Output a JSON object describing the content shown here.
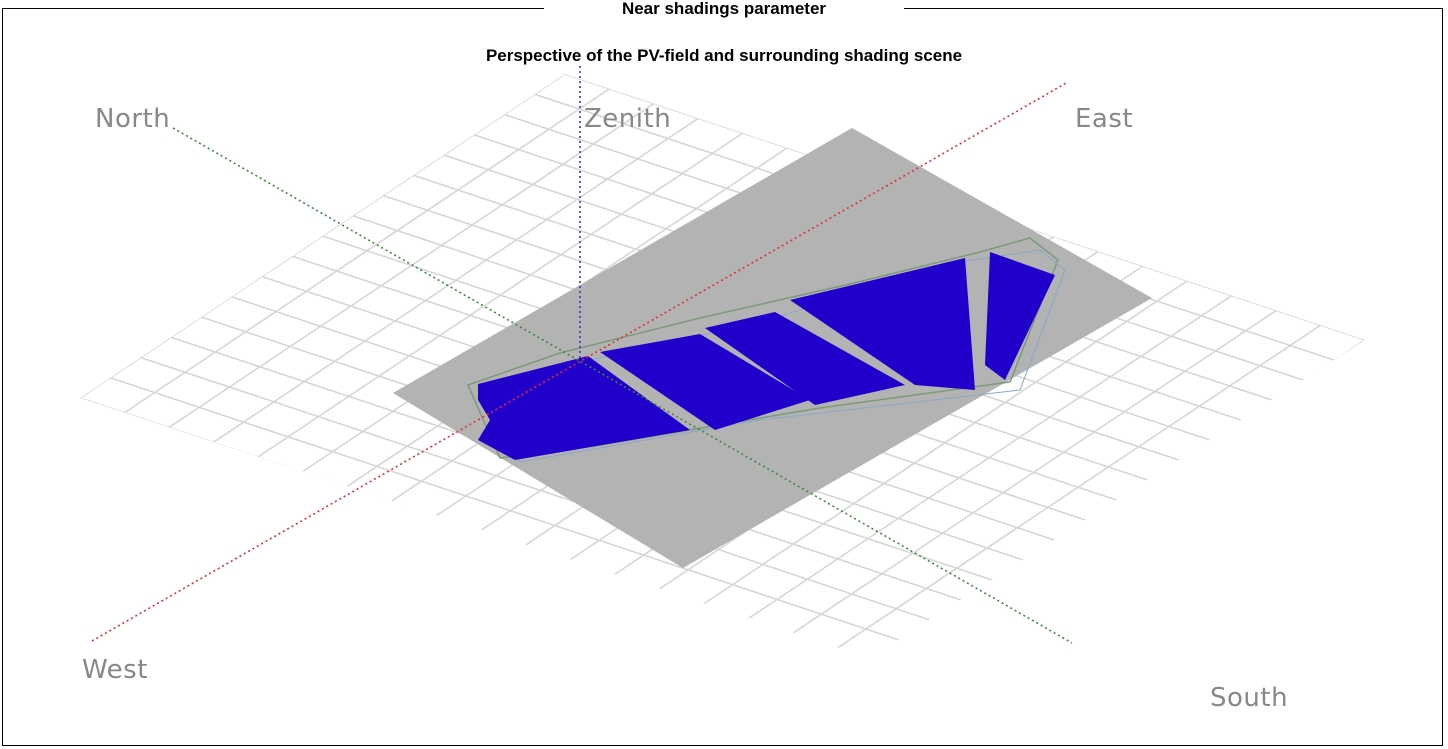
{
  "frame": {
    "title": "Near shadings parameter"
  },
  "view": {
    "subtitle": "Perspective of the PV-field and surrounding shading scene"
  },
  "directions": {
    "north": "North",
    "zenith": "Zenith",
    "east": "East",
    "west": "West",
    "south": "South"
  },
  "colors": {
    "ground": "#b3b3b3",
    "pv_modules": "#2200cc",
    "grid": "#d6d6d6",
    "axis_east_west": "#e03030",
    "axis_north_south": "#3a8a3a",
    "axis_zenith": "#3333dd",
    "labels": "#888888"
  }
}
